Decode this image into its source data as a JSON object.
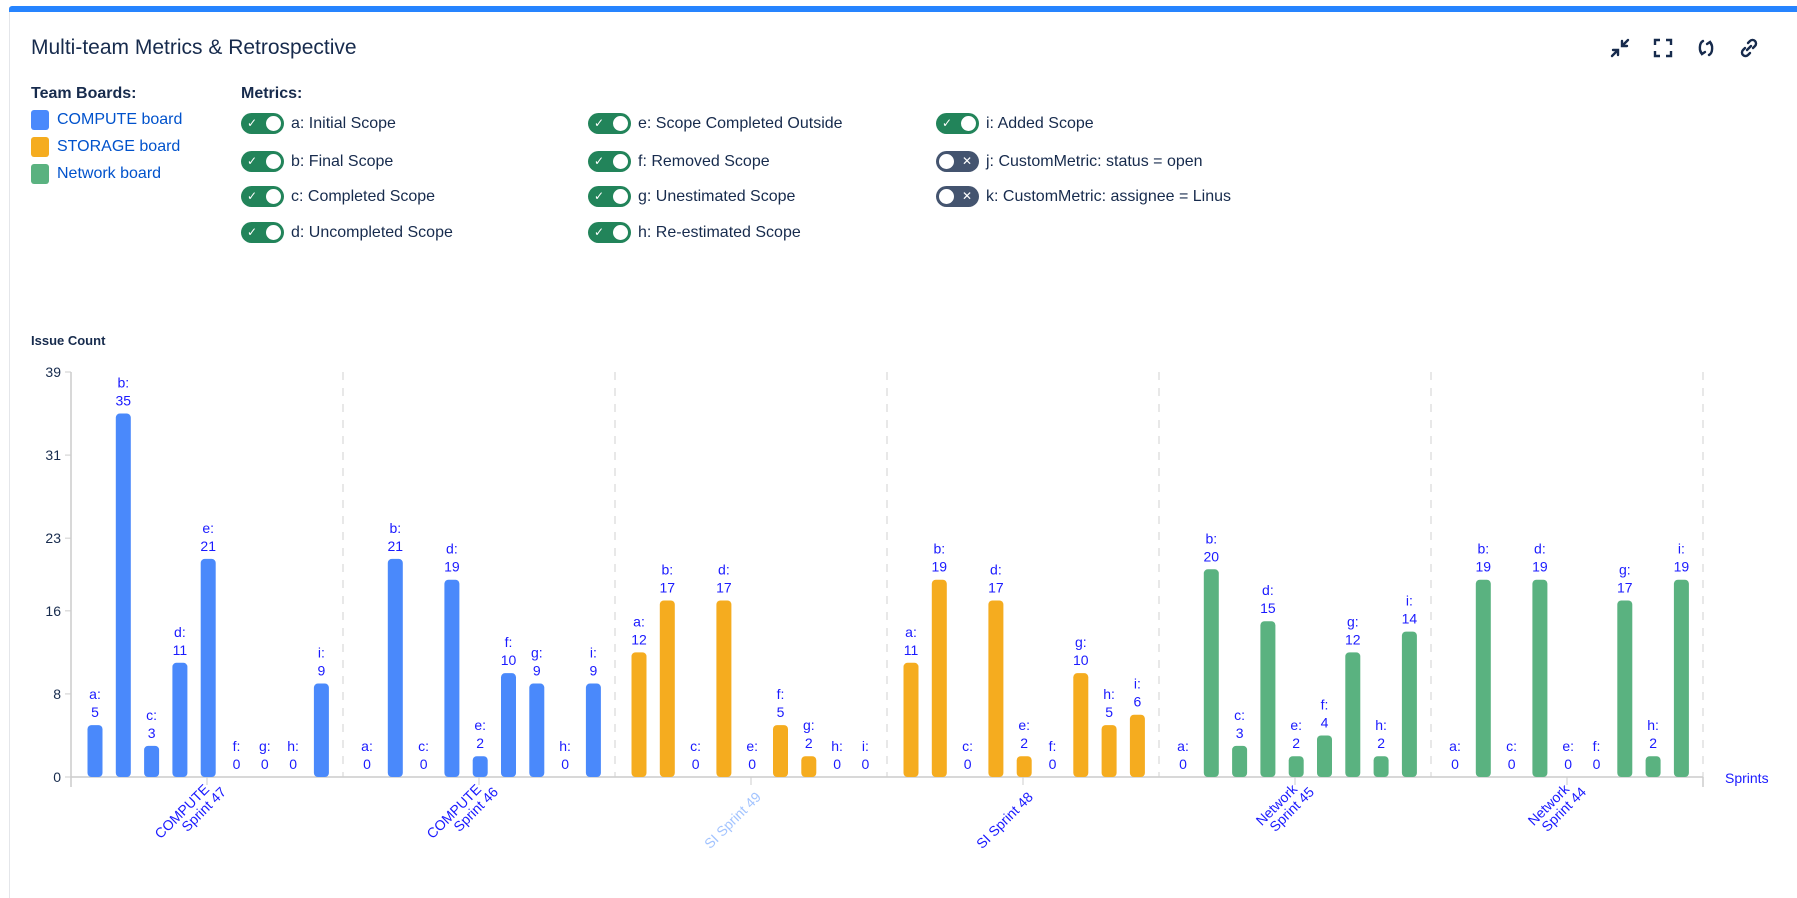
{
  "header": {
    "title": "Multi-team Metrics & Retrospective",
    "tools": [
      {
        "icon": "minimize-icon"
      },
      {
        "icon": "fullscreen-icon"
      },
      {
        "icon": "refresh-icon"
      },
      {
        "icon": "link-icon"
      }
    ]
  },
  "boards": {
    "label": "Team Boards:",
    "items": [
      {
        "label": "COMPUTE board",
        "color": "#4a89fb"
      },
      {
        "label": "STORAGE board",
        "color": "#f5ac1f"
      },
      {
        "label": "Network board",
        "color": "#5ab280"
      }
    ]
  },
  "metrics": {
    "label": "Metrics:",
    "items": [
      {
        "label": "a: Initial Scope",
        "on": true
      },
      {
        "label": "b: Final Scope",
        "on": true
      },
      {
        "label": "c: Completed Scope",
        "on": true
      },
      {
        "label": "d: Uncompleted Scope",
        "on": true
      },
      {
        "label": "e: Scope Completed Outside",
        "on": true
      },
      {
        "label": "f: Removed Scope",
        "on": true
      },
      {
        "label": "g: Unestimated Scope",
        "on": true
      },
      {
        "label": "h: Re-estimated Scope",
        "on": true
      },
      {
        "label": "i: Added Scope",
        "on": true
      },
      {
        "label": "j: CustomMetric: status = open",
        "on": false
      },
      {
        "label": "k: CustomMetric: assignee = Linus",
        "on": false
      }
    ],
    "on_mark": "✓",
    "off_mark": "✕"
  },
  "chart_data": {
    "type": "bar",
    "ylabel": "Issue Count",
    "xlabel": "Sprints",
    "ylim": [
      0,
      39
    ],
    "yticks": [
      0,
      8,
      16,
      23,
      31,
      39
    ],
    "grid": "vertical dashed separators between sprints",
    "metric_keys": [
      "a",
      "b",
      "c",
      "d",
      "e",
      "f",
      "g",
      "h",
      "i"
    ],
    "categories": [
      {
        "label": "COMPUTE Sprint 47",
        "lines": [
          "COMPUTE",
          "Sprint 47"
        ],
        "board": "COMPUTE board",
        "color": "#4a89fb",
        "label_color": "#1a1aff",
        "values": [
          5,
          35,
          3,
          11,
          21,
          0,
          0,
          0,
          9
        ]
      },
      {
        "label": "COMPUTE Sprint 46",
        "lines": [
          "COMPUTE",
          "Sprint 46"
        ],
        "board": "COMPUTE board",
        "color": "#4a89fb",
        "label_color": "#1a1aff",
        "values": [
          0,
          21,
          0,
          19,
          2,
          10,
          9,
          0,
          9
        ]
      },
      {
        "label": "SI Sprint 49",
        "lines": [
          "SI Sprint 49"
        ],
        "board": "STORAGE board",
        "color": "#f5ac1f",
        "label_color": "#a3c4ff",
        "values": [
          12,
          17,
          0,
          17,
          0,
          5,
          2,
          0,
          0
        ]
      },
      {
        "label": "SI Sprint 48",
        "lines": [
          "SI Sprint 48"
        ],
        "board": "STORAGE board",
        "color": "#f5ac1f",
        "label_color": "#1a1aff",
        "values": [
          11,
          19,
          0,
          17,
          2,
          0,
          10,
          5,
          6
        ]
      },
      {
        "label": "Network Sprint 45",
        "lines": [
          "Network",
          "Sprint 45"
        ],
        "board": "Network board",
        "color": "#5ab280",
        "label_color": "#1a1aff",
        "values": [
          0,
          20,
          3,
          15,
          2,
          4,
          12,
          2,
          14
        ]
      },
      {
        "label": "Network Sprint 44",
        "lines": [
          "Network",
          "Sprint 44"
        ],
        "board": "Network board",
        "color": "#5ab280",
        "label_color": "#1a1aff",
        "values": [
          0,
          19,
          0,
          19,
          0,
          0,
          17,
          2,
          19
        ]
      }
    ]
  }
}
